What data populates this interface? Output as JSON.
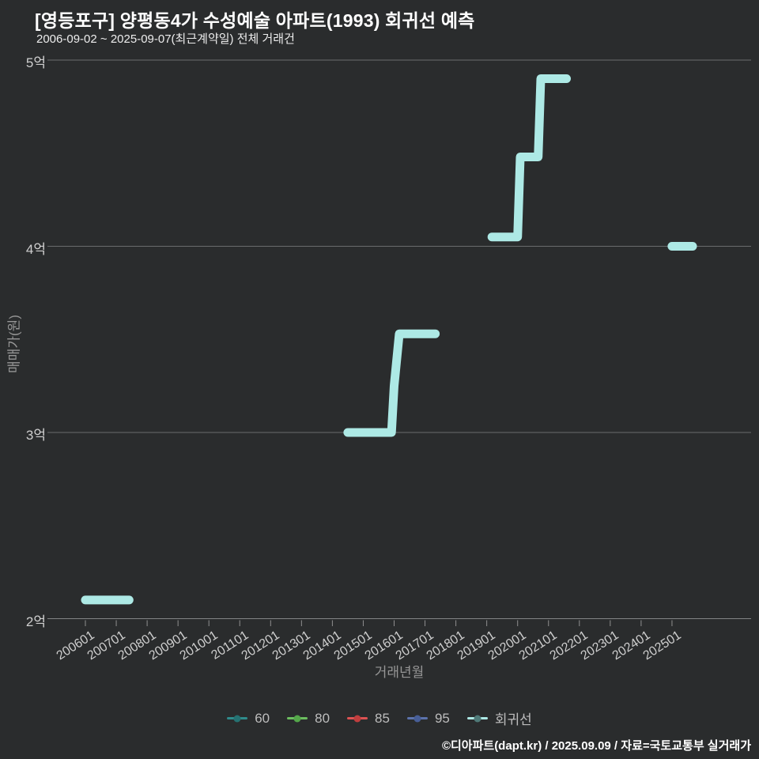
{
  "header": {
    "title": "[영등포구] 양평동4가 수성예술 아파트(1993) 회귀선 예측",
    "subtitle": "2006-09-02 ~ 2025-09-07(최근계약일) 전체 거래건"
  },
  "footer": {
    "credit": "©디아파트(dapt.kr) / 2025.09.09 / 자료=국토교통부 실거래가"
  },
  "chart_data": {
    "type": "line",
    "title": "[영등포구] 양평동4가 수성예술 아파트(1993) 회귀선 예측",
    "subtitle": "2006-09-02 ~ 2025-09-07(최근계약일) 전체 거래건",
    "xlabel": "거래년월",
    "ylabel": "매매가(원)",
    "y_unit": "억원",
    "ylim": [
      2,
      5.05
    ],
    "grid": "horizontal",
    "legend_position": "bottom",
    "x_ticks": [
      "200601",
      "200701",
      "200801",
      "200901",
      "201001",
      "201101",
      "201201",
      "201301",
      "201401",
      "201501",
      "201601",
      "201701",
      "201801",
      "201901",
      "202001",
      "202101",
      "202201",
      "202301",
      "202401",
      "202501"
    ],
    "y_ticks": [
      {
        "label": "2억",
        "value": 2
      },
      {
        "label": "3억",
        "value": 3
      },
      {
        "label": "4억",
        "value": 4
      },
      {
        "label": "5억",
        "value": 5
      }
    ],
    "legend": [
      {
        "label": "60",
        "line_color": "#2f8c8c",
        "dot_color": "#257272"
      },
      {
        "label": "80",
        "line_color": "#6cbe60",
        "dot_color": "#54a74a"
      },
      {
        "label": "85",
        "line_color": "#dd5353",
        "dot_color": "#c03e3e"
      },
      {
        "label": "95",
        "line_color": "#5c73ac",
        "dot_color": "#475e97"
      },
      {
        "label": "회귀선",
        "line_color": "#ade9e5",
        "dot_color": "#4f7a78"
      }
    ],
    "series": [
      {
        "name": "60",
        "color": "#2f8c8c",
        "segments": []
      },
      {
        "name": "80",
        "color": "#6cbe60",
        "segments": []
      },
      {
        "name": "85",
        "color": "#dd5353",
        "segments": []
      },
      {
        "name": "95",
        "color": "#5c73ac",
        "segments": []
      },
      {
        "name": "회귀선",
        "color": "#ade9e5",
        "segments": [
          [
            {
              "x": "200601",
              "y": 2.1
            },
            {
              "x": "200706",
              "y": 2.1
            }
          ],
          [
            {
              "x": "201407",
              "y": 3.0
            },
            {
              "x": "201512",
              "y": 3.0
            },
            {
              "x": "201601",
              "y": 3.25
            },
            {
              "x": "201603",
              "y": 3.53
            },
            {
              "x": "201705",
              "y": 3.53
            }
          ],
          [
            {
              "x": "201903",
              "y": 4.05
            },
            {
              "x": "202001",
              "y": 4.05
            },
            {
              "x": "202002",
              "y": 4.48
            },
            {
              "x": "202009",
              "y": 4.48
            },
            {
              "x": "202010",
              "y": 4.9
            },
            {
              "x": "202108",
              "y": 4.9
            }
          ],
          [
            {
              "x": "202501",
              "y": 4.0
            },
            {
              "x": "202509",
              "y": 4.0
            }
          ]
        ]
      }
    ]
  }
}
